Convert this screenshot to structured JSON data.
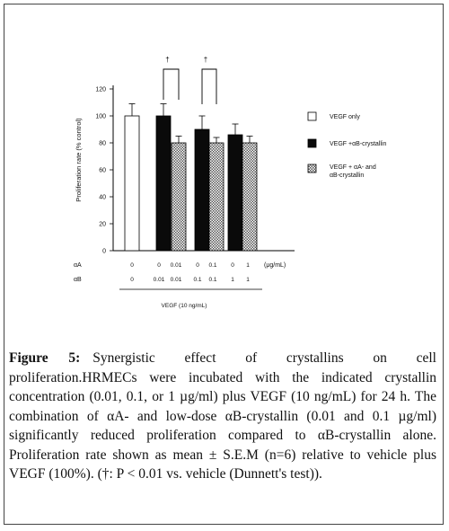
{
  "chart_data": {
    "type": "bar",
    "title": "",
    "xlabel": "VEGF (10 ng/mL)",
    "ylabel": "Proliferation rate (% control)",
    "ylim": [
      0,
      120
    ],
    "yticks": [
      "0",
      "20",
      "40",
      "60",
      "80",
      "100",
      "120"
    ],
    "categories": [
      "0 / 0",
      "0 / 0.01",
      "0.01 / 0.01",
      "0 / 0.1",
      "0.1 / 0.1",
      "0 / 1",
      "1 / 1"
    ],
    "bars": [
      {
        "series": "VEGF only",
        "value": 100,
        "error": 9
      },
      {
        "series": "VEGF +αB-crystallin",
        "value": 100,
        "error": 9
      },
      {
        "series": "VEGF + αA- and αB-crystallin",
        "value": 80,
        "error": 5
      },
      {
        "series": "VEGF +αB-crystallin",
        "value": 90,
        "error": 10
      },
      {
        "series": "VEGF + αA- and αB-crystallin",
        "value": 80,
        "error": 4
      },
      {
        "series": "VEGF +αB-crystallin",
        "value": 86,
        "error": 8
      },
      {
        "series": "VEGF + αA- and αB-crystallin",
        "value": 80,
        "error": 5
      }
    ],
    "series": [
      {
        "name": "VEGF only",
        "fill": "white"
      },
      {
        "name": "VEGF +αB-crystallin",
        "fill": "black"
      },
      {
        "name": "VEGF + αA- and αB-crystallin",
        "fill": "hatched"
      }
    ],
    "legend_position": "right",
    "row_labels": {
      "alpha_a": "αA",
      "alpha_b": "αB",
      "unit": "(μg/mL)"
    },
    "alpha_a_values": [
      "0",
      "0",
      "0.01",
      "0",
      "0.1",
      "0",
      "1"
    ],
    "alpha_b_values": [
      "0",
      "0.01",
      "0.01",
      "0.1",
      "0.1",
      "1",
      "1"
    ],
    "significance": [
      {
        "bars": [
          1,
          2
        ],
        "marker": "†"
      },
      {
        "bars": [
          3,
          4
        ],
        "marker": "†"
      }
    ],
    "grid": false
  },
  "caption": {
    "label": "Figure 5:",
    "title": "Synergistic effect of crystallins on cell proliferation.",
    "body": "HRMECs were incubated with the indicated crystallin concentration (0.01, 0.1, or 1 µg/ml) plus VEGF (10 ng/mL) for 24 h. The combination of αA- and low-dose αB-crystallin (0.01 and 0.1 µg/ml) significantly reduced proliferation compared to αB-crystallin alone. Proliferation rate shown as mean ± S.E.M (n=6) relative to vehicle plus VEGF (100%). (†: P < 0.01 vs. vehicle (Dunnett's test))."
  },
  "colors": {
    "bar_stroke": "#000000",
    "bar_black": "#0a0a0a",
    "hatch": "#555555",
    "text": "#111111"
  }
}
